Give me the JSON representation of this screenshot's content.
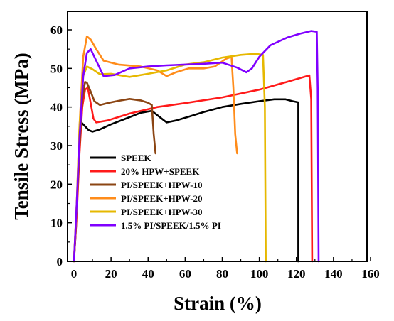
{
  "chart_data": {
    "type": "line",
    "xlabel": "Strain (%)",
    "ylabel": "Tensile Stress (MPa)",
    "xlim": [
      0,
      160
    ],
    "ylim": [
      0,
      65
    ],
    "xticks": [
      "0",
      "20",
      "40",
      "60",
      "80",
      "100",
      "120",
      "140",
      "160"
    ],
    "yticks": [
      "0",
      "10",
      "20",
      "30",
      "40",
      "50",
      "60"
    ],
    "grid": false,
    "legend_position": "bottom-left",
    "series": [
      {
        "name": "SPEEK",
        "color": "#000000",
        "points": [
          [
            0,
            0
          ],
          [
            1,
            8
          ],
          [
            2,
            20
          ],
          [
            3,
            31
          ],
          [
            4,
            36
          ],
          [
            6,
            35
          ],
          [
            8,
            34
          ],
          [
            10,
            33.6
          ],
          [
            14,
            34.2
          ],
          [
            20,
            35.5
          ],
          [
            28,
            37
          ],
          [
            36,
            38.5
          ],
          [
            42,
            39
          ],
          [
            46,
            37.5
          ],
          [
            50,
            36
          ],
          [
            55,
            36.5
          ],
          [
            62,
            37.5
          ],
          [
            70,
            38.7
          ],
          [
            80,
            40
          ],
          [
            90,
            40.8
          ],
          [
            100,
            41.5
          ],
          [
            108,
            42
          ],
          [
            114,
            42
          ],
          [
            118,
            41.5
          ],
          [
            121,
            41.2
          ],
          [
            121,
            0
          ]
        ]
      },
      {
        "name": "20% HPW+SPEEK",
        "color": "#ff1a1a",
        "points": [
          [
            0,
            0
          ],
          [
            1.5,
            12
          ],
          [
            3,
            28
          ],
          [
            4.5,
            40
          ],
          [
            6,
            44.5
          ],
          [
            7.5,
            45
          ],
          [
            9,
            41
          ],
          [
            10.5,
            37
          ],
          [
            12,
            36
          ],
          [
            18,
            36.5
          ],
          [
            30,
            38.3
          ],
          [
            45,
            40
          ],
          [
            60,
            41
          ],
          [
            80,
            42.5
          ],
          [
            100,
            44.5
          ],
          [
            115,
            46.5
          ],
          [
            122,
            47.5
          ],
          [
            127,
            48.2
          ],
          [
            128,
            42
          ],
          [
            128.5,
            0
          ]
        ]
      },
      {
        "name": "PI/SPEEK+HPW-10",
        "color": "#8b4513",
        "points": [
          [
            0,
            0
          ],
          [
            1.5,
            14
          ],
          [
            3,
            30
          ],
          [
            4.5,
            42
          ],
          [
            6,
            46.5
          ],
          [
            7,
            46.3
          ],
          [
            9,
            44
          ],
          [
            11,
            41.5
          ],
          [
            14,
            40.5
          ],
          [
            18,
            41
          ],
          [
            24,
            41.6
          ],
          [
            30,
            42.1
          ],
          [
            36,
            41.7
          ],
          [
            40,
            41.1
          ],
          [
            42,
            40.5
          ],
          [
            43,
            33
          ],
          [
            44,
            28
          ]
        ]
      },
      {
        "name": "PI/SPEEK+HPW-20",
        "color": "#ff8c1a",
        "points": [
          [
            0,
            0
          ],
          [
            1.5,
            15
          ],
          [
            3,
            35
          ],
          [
            5,
            53
          ],
          [
            7,
            58.3
          ],
          [
            9,
            57.5
          ],
          [
            12,
            55
          ],
          [
            16,
            52
          ],
          [
            24,
            51
          ],
          [
            36,
            50.5
          ],
          [
            45,
            49.5
          ],
          [
            50,
            48
          ],
          [
            55,
            49
          ],
          [
            62,
            50
          ],
          [
            70,
            50
          ],
          [
            76,
            50.5
          ],
          [
            82,
            52.5
          ],
          [
            85,
            53
          ],
          [
            86,
            45
          ],
          [
            87,
            33
          ],
          [
            88,
            28
          ]
        ]
      },
      {
        "name": "PI/SPEEK+HPW-30",
        "color": "#e6b800",
        "points": [
          [
            0,
            0
          ],
          [
            1.5,
            15
          ],
          [
            3,
            35
          ],
          [
            5,
            48
          ],
          [
            7,
            50.5
          ],
          [
            10,
            49.8
          ],
          [
            14,
            48.5
          ],
          [
            20,
            48.6
          ],
          [
            30,
            47.8
          ],
          [
            40,
            48.6
          ],
          [
            50,
            49.5
          ],
          [
            60,
            51
          ],
          [
            70,
            51.6
          ],
          [
            80,
            52.8
          ],
          [
            90,
            53.5
          ],
          [
            98,
            53.8
          ],
          [
            102,
            53.5
          ],
          [
            103,
            40
          ],
          [
            103.5,
            0
          ]
        ]
      },
      {
        "name": "1.5% PI/SPEEK/1.5% PI",
        "color": "#8000ff",
        "points": [
          [
            0,
            0
          ],
          [
            1.5,
            15
          ],
          [
            3,
            32
          ],
          [
            5,
            48
          ],
          [
            7,
            54
          ],
          [
            9,
            55
          ],
          [
            12,
            52
          ],
          [
            16,
            48
          ],
          [
            22,
            48.3
          ],
          [
            30,
            50
          ],
          [
            40,
            50.5
          ],
          [
            50,
            50.8
          ],
          [
            60,
            51
          ],
          [
            70,
            51.2
          ],
          [
            80,
            51.5
          ],
          [
            88,
            50.2
          ],
          [
            93,
            49
          ],
          [
            96,
            50
          ],
          [
            100,
            53
          ],
          [
            106,
            56
          ],
          [
            115,
            58
          ],
          [
            122,
            59
          ],
          [
            128,
            59.7
          ],
          [
            131,
            59.5
          ],
          [
            131.5,
            45
          ],
          [
            132,
            0
          ]
        ]
      }
    ]
  }
}
